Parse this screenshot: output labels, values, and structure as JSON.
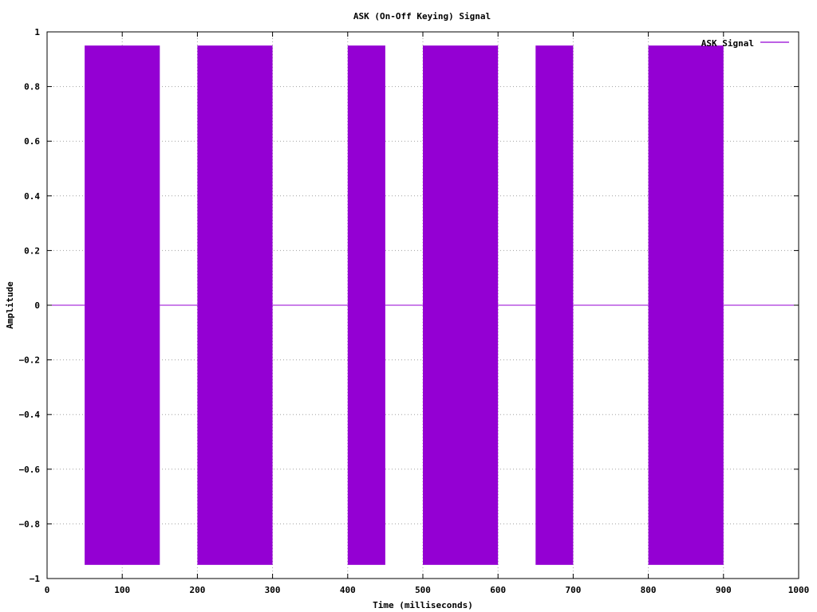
{
  "chart_data": {
    "type": "line",
    "title": "ASK (On-Off Keying) Signal",
    "xlabel": "Time (milliseconds)",
    "ylabel": "Amplitude",
    "xlim": [
      0,
      1000
    ],
    "ylim": [
      -1,
      1
    ],
    "xticks": [
      0,
      100,
      200,
      300,
      400,
      500,
      600,
      700,
      800,
      900,
      1000
    ],
    "yticks": [
      -1,
      -0.8,
      -0.6,
      -0.4,
      -0.2,
      0,
      0.2,
      0.4,
      0.6,
      0.8,
      1
    ],
    "ytick_labels": [
      "−1",
      "−0.8",
      "−0.6",
      "−0.4",
      "−0.2",
      "0",
      "0.2",
      "0.4",
      "0.6",
      "0.8",
      "1"
    ],
    "grid": true,
    "legend": "top-right",
    "series": [
      {
        "name": "ASK Signal",
        "color": "#9400d3",
        "carrier_amplitude": 0.95,
        "on_intervals": [
          [
            50,
            150
          ],
          [
            200,
            300
          ],
          [
            400,
            450
          ],
          [
            500,
            600
          ],
          [
            650,
            700
          ],
          [
            800,
            900
          ]
        ],
        "off_value": 0
      }
    ]
  }
}
